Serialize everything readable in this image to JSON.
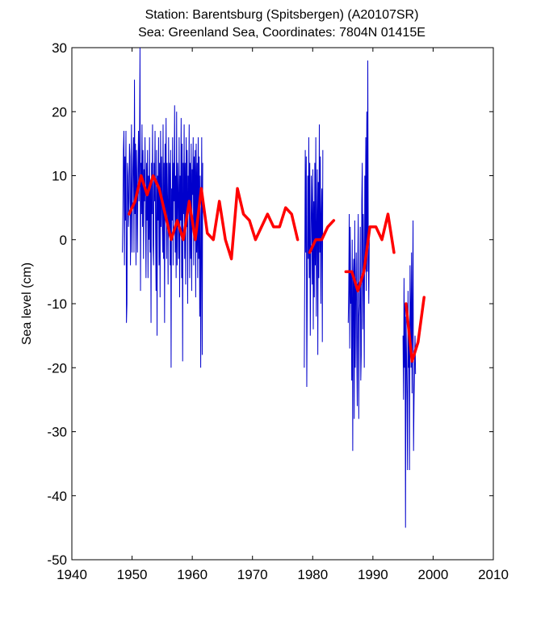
{
  "chart_data": {
    "type": "line",
    "title": "Station: Barentsburg (Spitsbergen)  (A20107SR)",
    "subtitle": "Sea: Greenland Sea, Coordinates: 7804N 01415E",
    "xlabel": "",
    "ylabel": "Sea level (cm)",
    "xlim": [
      1940,
      2010
    ],
    "ylim": [
      -50,
      30
    ],
    "xticks": [
      1940,
      1950,
      1960,
      1970,
      1980,
      1990,
      2000,
      2010
    ],
    "yticks": [
      -50,
      -40,
      -30,
      -20,
      -10,
      0,
      10,
      20,
      30
    ],
    "grid": false,
    "colors": {
      "monthly": "#0000cc",
      "annual": "#ff0000"
    },
    "series": [
      {
        "style": "thin-blue",
        "segments": [
          {
            "start": 1948.4,
            "values": [
              -2,
              5,
              14,
              17,
              -4,
              13,
              3,
              17,
              -13,
              -10,
              12,
              10,
              2,
              6,
              15,
              13,
              -4,
              5,
              18,
              -2,
              8,
              12,
              16,
              -2,
              25,
              4,
              15,
              -4,
              14,
              8,
              -2,
              11,
              17,
              6,
              14,
              30,
              -8,
              12,
              4,
              18,
              2,
              14,
              -3,
              11,
              6,
              16,
              4,
              -6,
              12,
              3,
              14,
              -6,
              10,
              0,
              16,
              -2,
              9,
              -13,
              12,
              4,
              18,
              -1,
              -4,
              12,
              6,
              17,
              2,
              -8,
              14,
              -15,
              10,
              3,
              16,
              -4,
              12,
              -9,
              17,
              2,
              13,
              5,
              -2,
              18,
              -3,
              12,
              -13,
              15,
              4,
              19,
              -3,
              12,
              6,
              -7,
              16,
              1,
              12,
              -4,
              14,
              -20,
              8,
              3,
              16,
              -4,
              12,
              6,
              21,
              -2,
              10,
              -6,
              20,
              -4,
              12,
              7,
              -3,
              16,
              -9,
              10,
              3,
              19,
              -6,
              15,
              -19,
              12,
              4,
              18,
              -3,
              12,
              -7,
              16,
              2,
              14,
              -10,
              10,
              5,
              18,
              -6,
              12,
              -3,
              15,
              -8,
              11,
              7,
              16,
              -4,
              13,
              0,
              14,
              -9,
              15,
              -2,
              12,
              -6,
              16,
              -3,
              13,
              -12,
              10,
              -20,
              -2,
              16,
              -18,
              12
            ]
          },
          {
            "start": 1978.6,
            "values": [
              -20,
              -4,
              14,
              -2,
              13,
              -23,
              -8,
              10,
              -3,
              16,
              -6,
              12,
              -15,
              -2,
              10,
              4,
              -7,
              11,
              -14,
              6,
              -9,
              12,
              -4,
              16,
              -12,
              2,
              11,
              -18,
              9,
              -6,
              18,
              -2,
              13,
              -10,
              4,
              8,
              -16,
              14
            ]
          },
          {
            "start": 1985.9,
            "values": [
              -13,
              -8,
              4,
              -17,
              2,
              -10,
              -5,
              -22,
              0,
              -33,
              -6,
              -3,
              -28,
              3,
              -20,
              -8,
              -2,
              -17,
              -26,
              -4,
              4,
              -28,
              -12,
              -10,
              2,
              -22,
              -18,
              6,
              12,
              -14,
              4,
              -6,
              -20,
              10,
              -2,
              16,
              -8,
              20,
              -5,
              28,
              -2,
              -10,
              0
            ]
          },
          {
            "start": 1995.0,
            "values": [
              -15,
              -25,
              -6,
              -20,
              -10,
              -45,
              -12,
              -18,
              -25,
              -36,
              -8,
              -20,
              -14,
              -36,
              -4,
              -10,
              -20,
              -2,
              -24,
              -10,
              3,
              -33,
              -25,
              -20,
              -15,
              -21
            ]
          }
        ]
      },
      {
        "style": "thick-red",
        "segments": [
          [
            [
              1949.5,
              4
            ],
            [
              1950.5,
              6
            ],
            [
              1951.5,
              10
            ],
            [
              1952.5,
              7
            ],
            [
              1953.5,
              10
            ],
            [
              1954.5,
              8
            ],
            [
              1955.5,
              4
            ],
            [
              1956.5,
              0
            ],
            [
              1957.5,
              3
            ],
            [
              1958.5,
              0
            ],
            [
              1959.5,
              6
            ],
            [
              1960.5,
              0
            ],
            [
              1961.5,
              8
            ],
            [
              1962.5,
              1
            ],
            [
              1963.5,
              0
            ],
            [
              1964.5,
              6
            ],
            [
              1965.5,
              0
            ],
            [
              1966.5,
              -3
            ],
            [
              1967.5,
              8
            ],
            [
              1968.5,
              4
            ],
            [
              1969.5,
              3
            ],
            [
              1970.5,
              0
            ],
            [
              1971.5,
              2
            ],
            [
              1972.5,
              4
            ],
            [
              1973.5,
              2
            ],
            [
              1974.5,
              2
            ],
            [
              1975.5,
              5
            ],
            [
              1976.5,
              4
            ],
            [
              1977.5,
              0
            ]
          ],
          [
            [
              1979.5,
              -2
            ],
            [
              1980.5,
              0
            ],
            [
              1981.5,
              0
            ],
            [
              1982.5,
              2
            ],
            [
              1983.5,
              3
            ]
          ],
          [
            [
              1985.5,
              -5
            ],
            [
              1986.5,
              -5
            ],
            [
              1987.5,
              -8
            ],
            [
              1988.5,
              -5
            ],
            [
              1989.5,
              2
            ],
            [
              1990.5,
              2
            ],
            [
              1991.5,
              0
            ],
            [
              1992.5,
              4
            ],
            [
              1993.5,
              -2
            ]
          ],
          [
            [
              1995.5,
              -10
            ],
            [
              1996.5,
              -19
            ],
            [
              1997.5,
              -16
            ],
            [
              1998.5,
              -9
            ]
          ]
        ]
      }
    ]
  }
}
